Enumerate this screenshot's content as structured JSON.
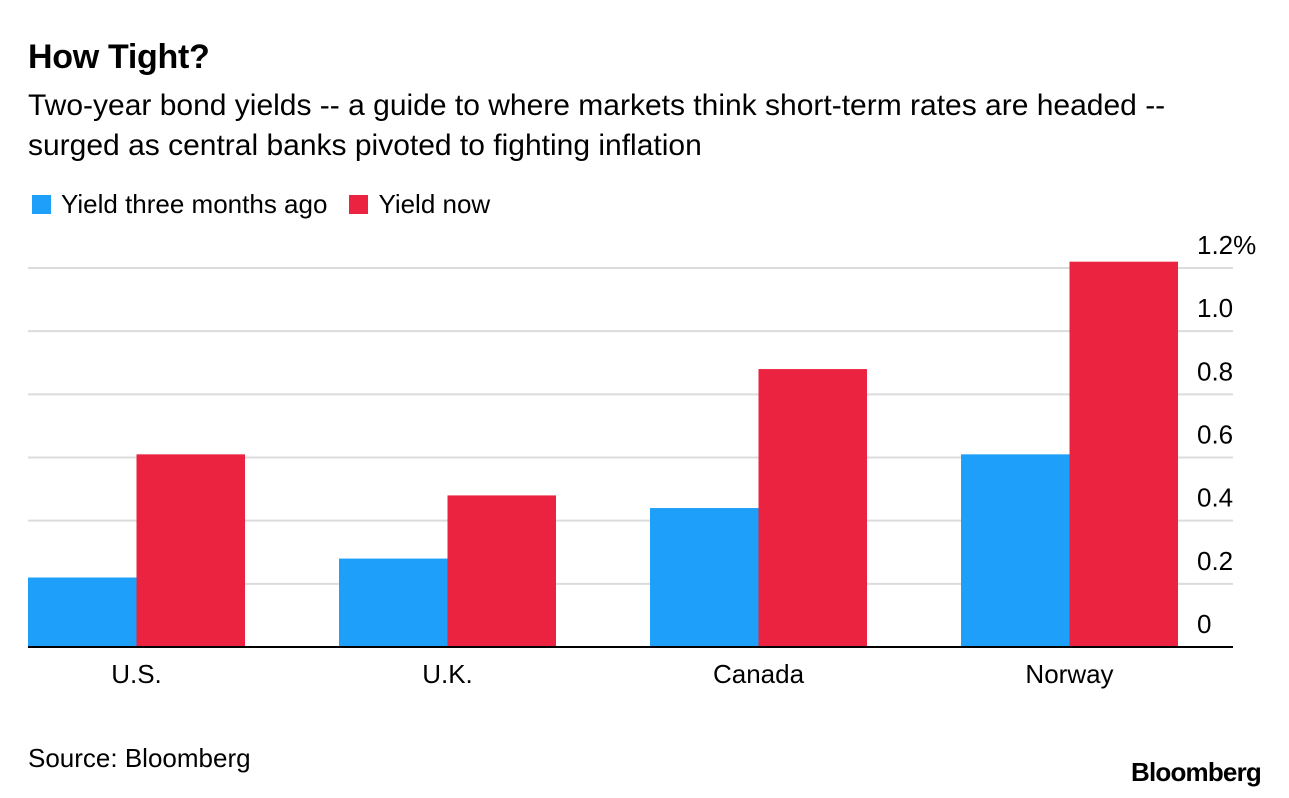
{
  "chart_data": {
    "type": "bar",
    "title": "How Tight?",
    "subtitle": "Two-year bond yields -- a guide to where markets think short-term rates are headed -- surged as central banks pivoted to fighting inflation",
    "categories": [
      "U.S.",
      "U.K.",
      "Canada",
      "Norway"
    ],
    "series": [
      {
        "name": "Yield three months ago",
        "color": "#1E9FF9",
        "values": [
          0.22,
          0.28,
          0.44,
          0.61
        ]
      },
      {
        "name": "Yield now",
        "color": "#EC2340",
        "values": [
          0.61,
          0.48,
          0.88,
          1.22
        ]
      }
    ],
    "ylim": [
      0,
      1.2
    ],
    "yticks": [
      0,
      0.2,
      0.4,
      0.6,
      0.8,
      1.0,
      1.2
    ],
    "ytick_labels": [
      "0",
      "0.2",
      "0.4",
      "0.6",
      "0.8",
      "1.0",
      "1.2%"
    ],
    "xlabel": "",
    "ylabel": "",
    "grid": true,
    "legend": "top-left",
    "source": "Source: Bloomberg"
  },
  "brand": "Bloomberg"
}
